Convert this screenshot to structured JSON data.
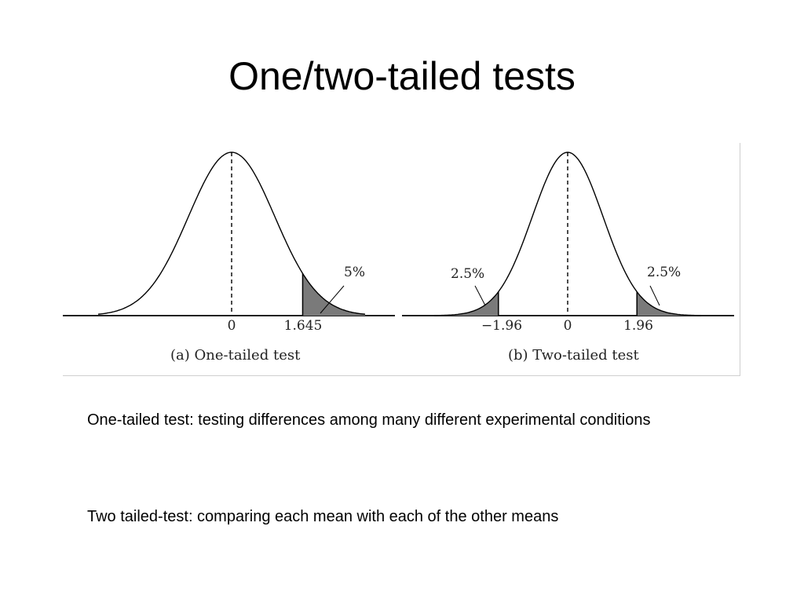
{
  "slide": {
    "title": "One/two-tailed tests",
    "descriptions": [
      "One-tailed test: testing differences among many different experimental conditions",
      "Two tailed-test: comparing each mean with each of the other means"
    ]
  },
  "figure": {
    "panels": [
      {
        "caption": "(a) One-tailed test",
        "ticks": [
          "0",
          "1.645"
        ],
        "tail_labels": [
          "5%"
        ],
        "shaded_tail": "right",
        "critical_value": 1.645,
        "alpha_percent": 5
      },
      {
        "caption": "(b) Two-tailed test",
        "ticks": [
          "−1.96",
          "0",
          "1.96"
        ],
        "tail_labels": [
          "2.5%",
          "2.5%"
        ],
        "shaded_tail": "both",
        "critical_value": 1.96,
        "alpha_percent": 2.5
      }
    ],
    "colors": {
      "shade": "#7a7a7a",
      "curve": "#000000",
      "axis": "#222222"
    }
  }
}
